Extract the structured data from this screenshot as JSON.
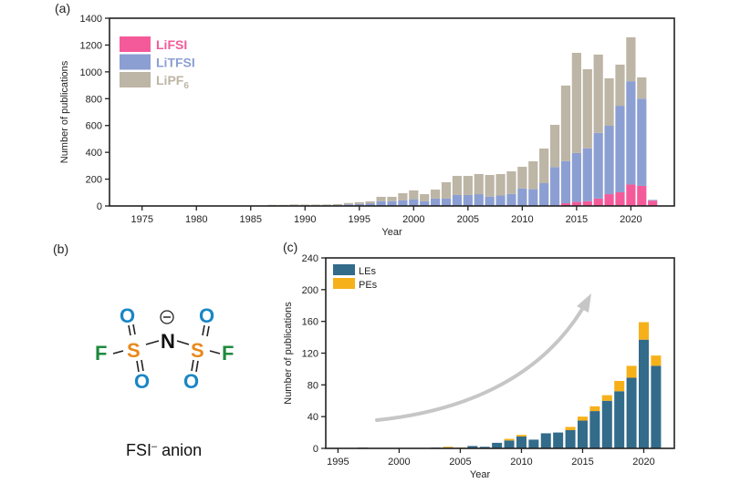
{
  "panels": {
    "a": {
      "label": "(a)"
    },
    "b": {
      "label": "(b)"
    },
    "c": {
      "label": "(c)"
    }
  },
  "molecule": {
    "name": "FSI⁻ anion",
    "caption_main": "FSI",
    "caption_sup": "–",
    "caption_rest": " anion",
    "charge_symbol": "−",
    "atoms": {
      "N": "N",
      "S_left": "S",
      "S_right": "S",
      "F_left": "F",
      "F_right": "F",
      "O_top_left": "O",
      "O_bottom_left": "O",
      "O_top_right": "O",
      "O_bottom_right": "O"
    },
    "colors": {
      "O": "#1a86c4",
      "S": "#e8891c",
      "F": "#1e8a3e",
      "N": "#111111"
    }
  },
  "chart_data": [
    {
      "type": "bar",
      "stacked": true,
      "panel": "a",
      "title": "",
      "xlabel": "Year",
      "ylabel": "Number of publications",
      "xlim": [
        1972,
        2024
      ],
      "ylim": [
        0,
        1400
      ],
      "xticks": [
        1975,
        1980,
        1985,
        1990,
        1995,
        2000,
        2005,
        2010,
        2015,
        2020
      ],
      "yticks": [
        0,
        200,
        400,
        600,
        800,
        1000,
        1200,
        1400
      ],
      "grid": false,
      "legend_position": "top-left",
      "legend": [
        {
          "name": "LiFSI",
          "color": "#f45a9a"
        },
        {
          "name": "LiTFSI",
          "color": "#8c9fd3"
        },
        {
          "name": "LiPF",
          "sub": "6",
          "color": "#bdb5a5"
        }
      ],
      "x": [
        1978,
        1979,
        1980,
        1987,
        1988,
        1989,
        1990,
        1991,
        1992,
        1993,
        1994,
        1995,
        1996,
        1997,
        1998,
        1999,
        2000,
        2001,
        2002,
        2003,
        2004,
        2005,
        2006,
        2007,
        2008,
        2009,
        2010,
        2011,
        2012,
        2013,
        2014,
        2015,
        2016,
        2017,
        2018,
        2019,
        2020,
        2021,
        2022
      ],
      "series": [
        {
          "name": "LiFSI",
          "color": "#f45a9a",
          "values": [
            0,
            0,
            0,
            0,
            0,
            0,
            0,
            0,
            0,
            0,
            0,
            0,
            0,
            0,
            0,
            0,
            0,
            0,
            0,
            0,
            0,
            0,
            0,
            0,
            0,
            0,
            0,
            0,
            0,
            5,
            20,
            30,
            35,
            55,
            88,
            102,
            160,
            150,
            40
          ]
        },
        {
          "name": "LiTFSI",
          "color": "#8c9fd3",
          "values": [
            0,
            0,
            0,
            3,
            3,
            5,
            4,
            4,
            5,
            6,
            12,
            14,
            20,
            36,
            36,
            43,
            50,
            36,
            55,
            55,
            82,
            82,
            88,
            70,
            78,
            90,
            130,
            125,
            170,
            285,
            315,
            365,
            395,
            490,
            510,
            645,
            770,
            650,
            5
          ]
        },
        {
          "name": "LiPF6",
          "color": "#bdb5a5",
          "values": [
            3,
            3,
            2,
            5,
            5,
            6,
            6,
            6,
            6,
            8,
            10,
            14,
            14,
            32,
            32,
            52,
            66,
            52,
            67,
            122,
            142,
            142,
            150,
            161,
            160,
            168,
            162,
            208,
            258,
            315,
            563,
            747,
            590,
            584,
            354,
            307,
            328,
            159,
            0
          ]
        }
      ],
      "totals": [
        3,
        3,
        2,
        8,
        8,
        11,
        10,
        10,
        11,
        14,
        22,
        28,
        34,
        68,
        68,
        95,
        116,
        88,
        122,
        177,
        224,
        224,
        238,
        231,
        238,
        258,
        292,
        333,
        428,
        605,
        898,
        1142,
        1020,
        1129,
        952,
        1054,
        1258,
        959,
        45
      ]
    },
    {
      "type": "bar",
      "stacked": true,
      "panel": "c",
      "title": "",
      "xlabel": "Year",
      "ylabel": "Number of publications",
      "xlim": [
        1994,
        2022.5
      ],
      "ylim": [
        0,
        240
      ],
      "xticks": [
        1995,
        2000,
        2005,
        2010,
        2015,
        2020
      ],
      "yticks": [
        0,
        40,
        80,
        120,
        160,
        200,
        240
      ],
      "grid": false,
      "legend_position": "top-left",
      "legend": [
        {
          "name": "LEs",
          "color": "#336b8a"
        },
        {
          "name": "PEs",
          "color": "#f6b11a"
        }
      ],
      "annotation": "curved gray arrow indicating growth trend",
      "x": [
        1997,
        2003,
        2004,
        2005,
        2006,
        2007,
        2008,
        2009,
        2010,
        2011,
        2012,
        2013,
        2014,
        2015,
        2016,
        2017,
        2018,
        2019,
        2020,
        2021
      ],
      "series": [
        {
          "name": "LEs",
          "color": "#336b8a",
          "values": [
            1,
            1,
            1,
            0,
            3,
            2,
            7,
            10,
            15,
            11,
            19,
            20,
            23,
            35,
            47,
            60,
            72,
            89,
            137,
            104
          ]
        },
        {
          "name": "PEs",
          "color": "#f6b11a",
          "values": [
            0,
            0,
            1,
            1,
            0,
            0,
            0,
            2,
            2,
            0,
            0,
            0,
            4,
            5,
            6,
            7,
            13,
            15,
            22,
            13
          ]
        }
      ]
    }
  ]
}
